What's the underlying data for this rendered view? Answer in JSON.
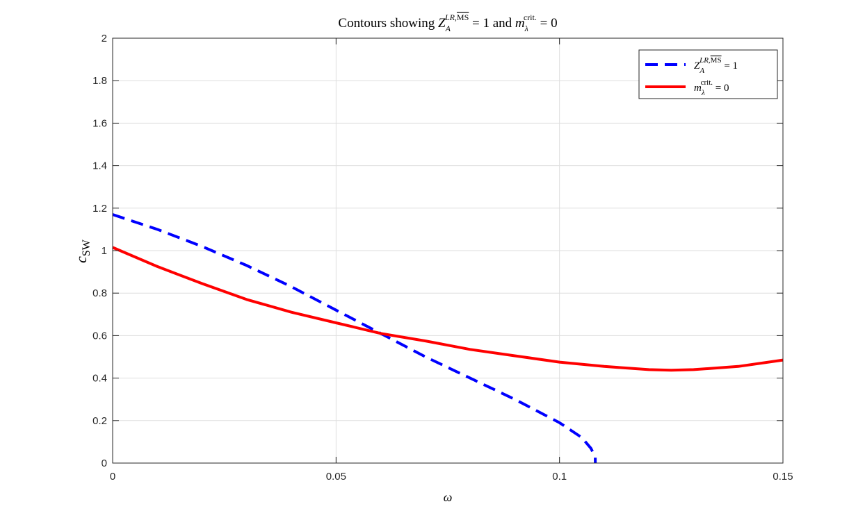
{
  "chart_data": {
    "type": "line",
    "title": "Contours showing Z_A^{LR,MS} = 1 and m_λ^{crit.} = 0",
    "xlabel": "ω",
    "ylabel": "c_SW",
    "xlim": [
      0,
      0.15
    ],
    "ylim": [
      0,
      2
    ],
    "x_ticks": [
      "0",
      "0.05",
      "0.1",
      "0.15"
    ],
    "y_ticks": [
      "0",
      "0.2",
      "0.4",
      "0.6",
      "0.8",
      "1",
      "1.2",
      "1.4",
      "1.6",
      "1.8",
      "2"
    ],
    "grid": true,
    "legend_position": "top-right",
    "series": [
      {
        "name": "Z_A^{LR,MS} = 1",
        "color": "#0000ff",
        "style": "dashed",
        "points": [
          [
            0,
            1.17
          ],
          [
            0.01,
            1.1
          ],
          [
            0.02,
            1.02
          ],
          [
            0.03,
            0.93
          ],
          [
            0.04,
            0.83
          ],
          [
            0.05,
            0.72
          ],
          [
            0.06,
            0.61
          ],
          [
            0.07,
            0.5
          ],
          [
            0.08,
            0.4
          ],
          [
            0.09,
            0.3
          ],
          [
            0.1,
            0.19
          ],
          [
            0.105,
            0.12
          ],
          [
            0.107,
            0.07
          ],
          [
            0.108,
            0.03
          ],
          [
            0.108,
            0
          ]
        ]
      },
      {
        "name": "m_λ^{crit.} = 0",
        "color": "#ff0000",
        "style": "solid",
        "points": [
          [
            0,
            1.015
          ],
          [
            0.01,
            0.925
          ],
          [
            0.02,
            0.845
          ],
          [
            0.03,
            0.77
          ],
          [
            0.04,
            0.71
          ],
          [
            0.05,
            0.66
          ],
          [
            0.06,
            0.61
          ],
          [
            0.07,
            0.575
          ],
          [
            0.08,
            0.535
          ],
          [
            0.09,
            0.505
          ],
          [
            0.1,
            0.475
          ],
          [
            0.11,
            0.455
          ],
          [
            0.12,
            0.44
          ],
          [
            0.125,
            0.437
          ],
          [
            0.13,
            0.44
          ],
          [
            0.14,
            0.455
          ],
          [
            0.15,
            0.485
          ]
        ]
      }
    ]
  }
}
